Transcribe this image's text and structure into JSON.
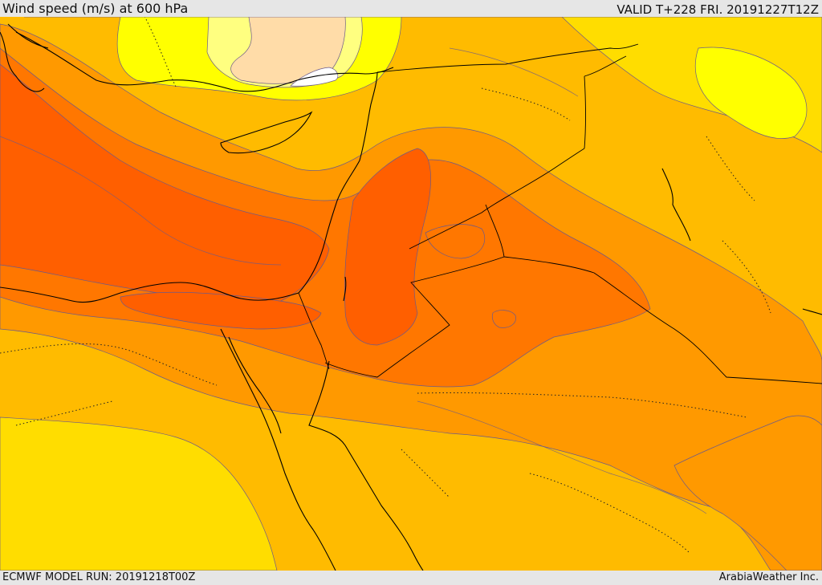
{
  "header": {
    "title": "Wind speed (m/s) at 600 hPa",
    "valid": "VALID T+228 FRI. 20191227T12Z"
  },
  "footer": {
    "model_run": "ECMWF MODEL RUN: 20191218T00Z",
    "credit": "ArabiaWeather Inc."
  },
  "colors": {
    "white": "#ffffff",
    "peach": "#ffdca8",
    "pale_yellow": "#ffff80",
    "yellow": "#ffff00",
    "gold": "#ffdd00",
    "orange_light": "#ffbb00",
    "orange": "#ff9900",
    "orange_dark": "#ff7700",
    "red_orange": "#ff5f00"
  }
}
